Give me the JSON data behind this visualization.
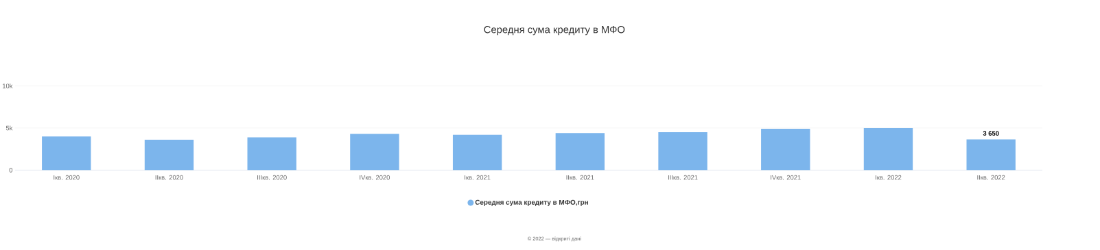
{
  "chart_data": {
    "type": "bar",
    "title": "Середня сума кредиту в МФО",
    "categories": [
      "Iкв. 2020",
      "IIкв. 2020",
      "IIIкв. 2020",
      "IVкв. 2020",
      "Iкв. 2021",
      "IIкв. 2021",
      "IIIкв. 2021",
      "IVкв. 2021",
      "Iкв. 2022",
      "IIкв. 2022"
    ],
    "series": [
      {
        "name": "Середня сума кредиту в МФО,грн",
        "color": "#7cb5ec",
        "values": [
          4000,
          3600,
          3900,
          4300,
          4200,
          4400,
          4500,
          4900,
          5000,
          3650
        ],
        "value_labels": [
          null,
          null,
          null,
          null,
          null,
          null,
          null,
          null,
          null,
          "3 650"
        ]
      }
    ],
    "ylim": [
      0,
      10000
    ],
    "yticks": [
      0,
      {
        "value": 5000,
        "label": "5k"
      },
      {
        "value": 10000,
        "label": "10k"
      }
    ],
    "grid": "y",
    "legend": "bottom",
    "marker": "circle",
    "annotations": [
      "© 2022 — відкриті дані"
    ]
  }
}
